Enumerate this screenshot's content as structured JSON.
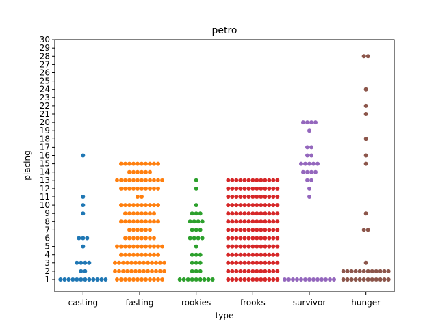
{
  "chart_data": {
    "type": "swarm",
    "title": "petro",
    "xlabel": "type",
    "ylabel": "placing",
    "ylim": [
      0,
      30
    ],
    "yticks": [
      1,
      2,
      3,
      4,
      5,
      6,
      7,
      8,
      9,
      10,
      11,
      12,
      13,
      14,
      15,
      16,
      17,
      18,
      19,
      20,
      21,
      22,
      23,
      24,
      25,
      26,
      27,
      28,
      29,
      30
    ],
    "grid": false,
    "legend": false,
    "categories": [
      "casting",
      "fasting",
      "rookies",
      "frooks",
      "survivor",
      "hunger"
    ],
    "colors": [
      "#1f77b4",
      "#ff7f0e",
      "#2ca02c",
      "#d62728",
      "#9467bd",
      "#8c564b"
    ],
    "series": [
      {
        "counts": [
          [
            1,
            12
          ],
          [
            2,
            2
          ],
          [
            3,
            4
          ],
          [
            5,
            1
          ],
          [
            6,
            3
          ],
          [
            9,
            1
          ],
          [
            10,
            1
          ],
          [
            11,
            1
          ],
          [
            16,
            1
          ]
        ]
      },
      {
        "counts": [
          [
            1,
            12
          ],
          [
            2,
            13
          ],
          [
            3,
            13
          ],
          [
            4,
            10
          ],
          [
            5,
            12
          ],
          [
            6,
            8
          ],
          [
            7,
            6
          ],
          [
            8,
            10
          ],
          [
            9,
            8
          ],
          [
            10,
            10
          ],
          [
            11,
            2
          ],
          [
            12,
            10
          ],
          [
            13,
            12
          ],
          [
            14,
            6
          ],
          [
            15,
            10
          ]
        ]
      },
      {
        "counts": [
          [
            1,
            9
          ],
          [
            2,
            3
          ],
          [
            3,
            3
          ],
          [
            4,
            3
          ],
          [
            5,
            1
          ],
          [
            6,
            4
          ],
          [
            7,
            3
          ],
          [
            8,
            4
          ],
          [
            9,
            3
          ],
          [
            10,
            1
          ],
          [
            12,
            1
          ],
          [
            13,
            1
          ]
        ]
      },
      {
        "counts": [
          [
            1,
            13
          ],
          [
            2,
            13
          ],
          [
            3,
            13
          ],
          [
            4,
            13
          ],
          [
            5,
            13
          ],
          [
            6,
            13
          ],
          [
            7,
            13
          ],
          [
            8,
            13
          ],
          [
            9,
            13
          ],
          [
            10,
            13
          ],
          [
            11,
            13
          ],
          [
            12,
            13
          ],
          [
            13,
            13
          ]
        ]
      },
      {
        "counts": [
          [
            1,
            13
          ],
          [
            11,
            1
          ],
          [
            12,
            1
          ],
          [
            13,
            2
          ],
          [
            14,
            4
          ],
          [
            15,
            5
          ],
          [
            16,
            2
          ],
          [
            17,
            2
          ],
          [
            19,
            1
          ],
          [
            20,
            4
          ]
        ]
      },
      {
        "counts": [
          [
            1,
            12
          ],
          [
            2,
            12
          ],
          [
            3,
            1
          ],
          [
            7,
            2
          ],
          [
            9,
            1
          ],
          [
            15,
            1
          ],
          [
            16,
            1
          ],
          [
            18,
            1
          ],
          [
            21,
            1
          ],
          [
            22,
            1
          ],
          [
            24,
            1
          ],
          [
            28,
            2
          ]
        ]
      }
    ]
  }
}
